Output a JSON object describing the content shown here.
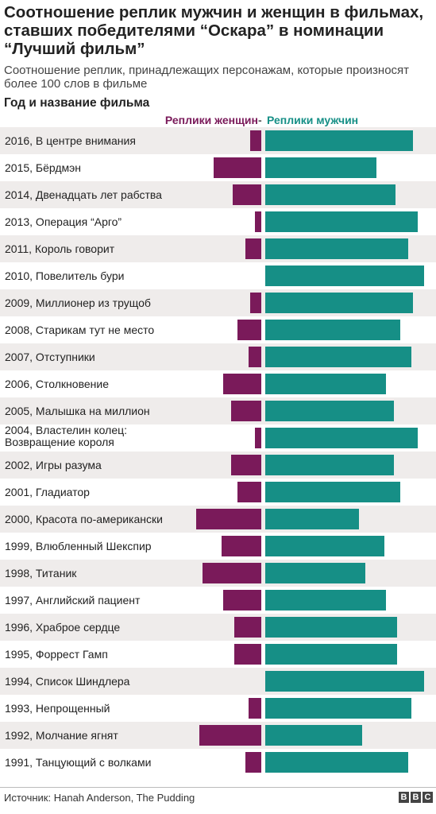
{
  "title": "Соотношение реплик мужчин и женщин в фильмах, ставших победителями “Оскара” в номинации “Лучший фильм”",
  "subtitle": "Соотношение реплик, принадлежащих персонажам, которые произносят более 100 слов в фильме",
  "row_header": "Год и название фильма",
  "source": "Источник: Hanah Anderson, The Pudding",
  "logo_letters": [
    "B",
    "B",
    "C"
  ],
  "colors": {
    "women": "#7a1a5a",
    "men": "#168f86",
    "stripe": "#efeceb"
  },
  "chart_data": {
    "type": "bar",
    "orientation": "horizontal-diverging",
    "series": [
      {
        "name": "Реплики женщин",
        "values": [
          7,
          30,
          18,
          4,
          10,
          0,
          7,
          15,
          8,
          24,
          19,
          4,
          19,
          15,
          41,
          25,
          37,
          24,
          17,
          17,
          0,
          8,
          39,
          10
        ]
      },
      {
        "name": "Реплики мужчин",
        "values": [
          93,
          70,
          82,
          96,
          90,
          100,
          93,
          85,
          92,
          76,
          81,
          96,
          81,
          85,
          59,
          75,
          63,
          76,
          83,
          83,
          100,
          92,
          61,
          90
        ]
      }
    ],
    "legend_separator": "-",
    "categories": [
      "2016, В центре внимания",
      "2015, Бёрдмэн",
      "2014, Двенадцать лет рабства",
      "2013, Операция “Арго”",
      "2011, Король говорит",
      "2010, Повелитель бури",
      "2009, Миллионер из трущоб",
      "2008, Старикам тут не место",
      "2007, Отступники",
      "2006, Столкновение",
      "2005, Малышка на миллион",
      "2004, Властелин колец:\nВозвращение короля",
      "2002, Игры разума",
      "2001, Гладиатор",
      "2000, Красота по-американски",
      "1999, Влюбленный Шекспир",
      "1998, Титаник",
      "1997, Английский пациент",
      "1996, Храброе сердце",
      "1995, Форрест Гамп",
      "1994, Список Шиндлера",
      "1993, Непрощенный",
      "1992, Молчание ягнят",
      "1991, Танцующий с волками"
    ],
    "unit": "%"
  }
}
